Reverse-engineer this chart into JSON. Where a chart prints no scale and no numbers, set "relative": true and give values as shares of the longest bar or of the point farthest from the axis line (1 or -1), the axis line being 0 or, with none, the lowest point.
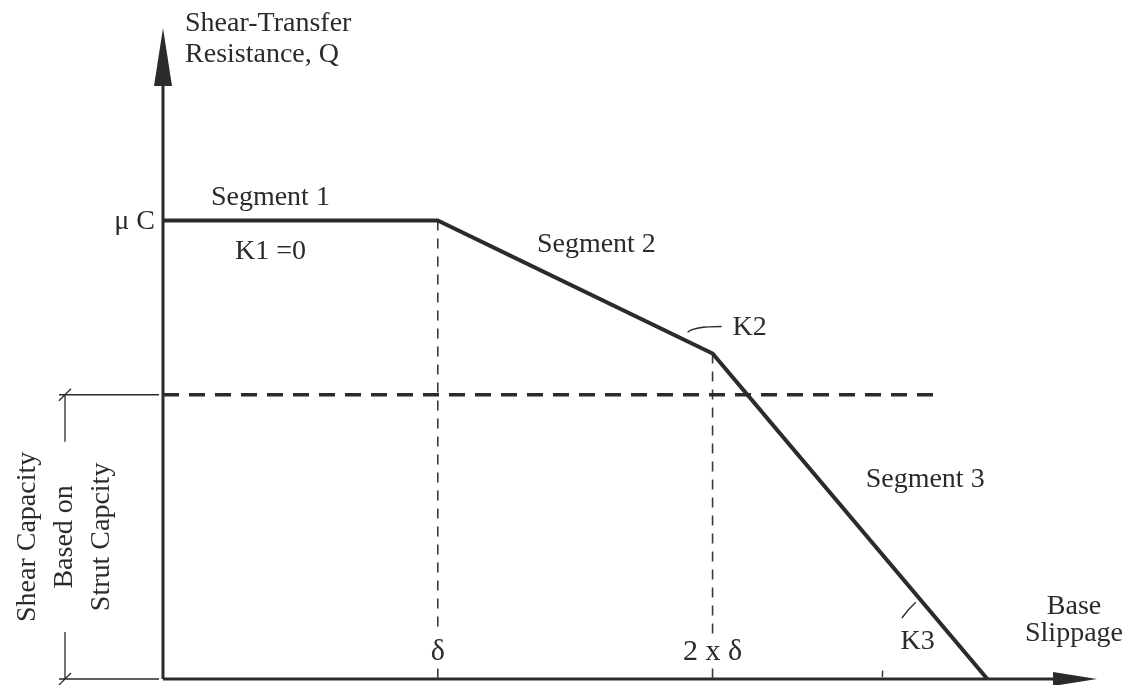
{
  "chart_data": {
    "type": "line",
    "relative": true,
    "xlabel": "Base\nSlippage",
    "categories": [
      null,
      "δ",
      "2 x δ",
      null
    ],
    "series": [
      {
        "color": "#2b2b2b",
        "values": [
          1,
          1,
          0.71,
          0
        ]
      }
    ],
    "ref_lines": [
      {
        "axis": "x",
        "value": "δ",
        "color": "#3a3a3a",
        "line_style": "dashed"
      },
      {
        "axis": "x",
        "value": "2 x δ",
        "color": "#3a3a3a",
        "line_style": "dashed"
      },
      {
        "axis": "y",
        "value": 0.62,
        "label": "Shear Capacity\nBased on\nStrut Capcity",
        "color": "#2b2b2b",
        "line_style": "dashed"
      }
    ],
    "annotations": [
      "Shear-Transfer\nResistance, Q",
      "μ C",
      "Segment 1",
      "K1 =0",
      "Segment 2",
      "K2",
      "Segment 3",
      "K3"
    ],
    "marker": "none",
    "line_style": "solid"
  }
}
